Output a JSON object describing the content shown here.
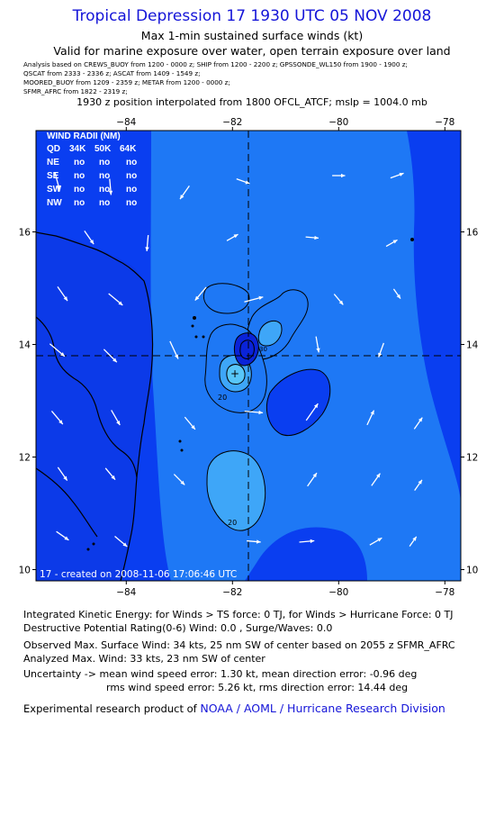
{
  "header": {
    "title": "Tropical Depression 17 1930 UTC 05 NOV 2008",
    "subtitle1": "Max 1-min sustained surface winds (kt)",
    "subtitle2": "Valid for marine exposure over water, open terrain exposure over land",
    "obs_lines": [
      "Analysis based on   CREWS_BUOY from 1200 - 0000 z;   SHIP from 1200 - 2200 z;   GPSSONDE_WL150 from 1900 - 1900 z;",
      "QSCAT from  2333 - 2336 z;   ASCAT from 1409 - 1549 z;",
      "MOORED_BUOY from 1209 - 2359 z;   METAR from 1200 - 0000 z;",
      "SFMR_AFRC from 1822 - 2319 z;"
    ],
    "position_line": "1930 z position interpolated from 1800 OFCL_ATCF; mslp = 1004.0 mb"
  },
  "wind_radii": {
    "title": "WIND RADII (NM)",
    "columns": [
      "QD",
      "34K",
      "50K",
      "64K"
    ],
    "rows": [
      [
        "NE",
        "no",
        "no",
        "no"
      ],
      [
        "SE",
        "no",
        "no",
        "no"
      ],
      [
        "SW",
        "no",
        "no",
        "no"
      ],
      [
        "NW",
        "no",
        "no",
        "no"
      ]
    ]
  },
  "map": {
    "created_label": "17 - created on 2008-11-06 17:06:46 UTC",
    "contour_labels": [
      "20",
      "20",
      "30"
    ],
    "colors": {
      "band_lt20": "#0a3ef0",
      "band_20_30": "#1e78f5",
      "band_30_40": "#3ea6f8",
      "band_ge40": "#58c6f8",
      "deep": "#0a23d8",
      "land": "#0c3ae8",
      "vectors": "#ffffff"
    }
  },
  "chart_data": {
    "type": "contour-map",
    "title": "Tropical Depression 17 1930 UTC 05 NOV 2008",
    "xlim": [
      -85.7,
      -77.7
    ],
    "ylim": [
      9.8,
      17.8
    ],
    "x_ticks": [
      -84,
      -82,
      -80,
      -78
    ],
    "x_tick_labels": [
      "−84",
      "−82",
      "−80",
      "−78"
    ],
    "y_ticks": [
      10,
      12,
      14,
      16
    ],
    "y_tick_labels": [
      "10",
      "12",
      "14",
      "16"
    ],
    "center": {
      "lon": -81.7,
      "lat": 13.8
    },
    "contour_levels_kt": [
      20,
      30
    ],
    "wind_vectors": [
      {
        "lon": -85.3,
        "lat": 16.9,
        "dir": 165,
        "speed": 16
      },
      {
        "lon": -84.3,
        "lat": 16.8,
        "dir": 175,
        "speed": 15
      },
      {
        "lon": -82.9,
        "lat": 16.7,
        "dir": 215,
        "speed": 15
      },
      {
        "lon": -81.8,
        "lat": 16.9,
        "dir": 110,
        "speed": 13
      },
      {
        "lon": -80.0,
        "lat": 17.0,
        "dir": 90,
        "speed": 12
      },
      {
        "lon": -78.9,
        "lat": 17.0,
        "dir": 70,
        "speed": 13
      },
      {
        "lon": -84.7,
        "lat": 15.9,
        "dir": 145,
        "speed": 15
      },
      {
        "lon": -83.6,
        "lat": 15.8,
        "dir": 185,
        "speed": 15
      },
      {
        "lon": -82.0,
        "lat": 15.9,
        "dir": 60,
        "speed": 12
      },
      {
        "lon": -80.5,
        "lat": 15.9,
        "dir": 95,
        "speed": 12
      },
      {
        "lon": -79.0,
        "lat": 15.8,
        "dir": 60,
        "speed": 12
      },
      {
        "lon": -85.2,
        "lat": 14.9,
        "dir": 145,
        "speed": 16
      },
      {
        "lon": -84.2,
        "lat": 14.8,
        "dir": 130,
        "speed": 17
      },
      {
        "lon": -82.6,
        "lat": 14.9,
        "dir": 220,
        "speed": 16
      },
      {
        "lon": -81.6,
        "lat": 14.8,
        "dir": 75,
        "speed": 18
      },
      {
        "lon": -80.0,
        "lat": 14.8,
        "dir": 140,
        "speed": 13
      },
      {
        "lon": -78.9,
        "lat": 14.9,
        "dir": 145,
        "speed": 11
      },
      {
        "lon": -85.3,
        "lat": 13.9,
        "dir": 130,
        "speed": 18
      },
      {
        "lon": -84.3,
        "lat": 13.8,
        "dir": 135,
        "speed": 17
      },
      {
        "lon": -83.1,
        "lat": 13.9,
        "dir": 155,
        "speed": 18
      },
      {
        "lon": -80.4,
        "lat": 14.0,
        "dir": 170,
        "speed": 15
      },
      {
        "lon": -79.2,
        "lat": 13.9,
        "dir": 200,
        "speed": 14
      },
      {
        "lon": -85.3,
        "lat": 12.7,
        "dir": 140,
        "speed": 16
      },
      {
        "lon": -84.2,
        "lat": 12.7,
        "dir": 150,
        "speed": 16
      },
      {
        "lon": -82.8,
        "lat": 12.6,
        "dir": 140,
        "speed": 15
      },
      {
        "lon": -81.6,
        "lat": 12.8,
        "dir": 95,
        "speed": 17
      },
      {
        "lon": -80.5,
        "lat": 12.8,
        "dir": 35,
        "speed": 19
      },
      {
        "lon": -79.4,
        "lat": 12.7,
        "dir": 25,
        "speed": 15
      },
      {
        "lon": -78.5,
        "lat": 12.6,
        "dir": 35,
        "speed": 13
      },
      {
        "lon": -85.2,
        "lat": 11.7,
        "dir": 145,
        "speed": 15
      },
      {
        "lon": -84.3,
        "lat": 11.7,
        "dir": 140,
        "speed": 14
      },
      {
        "lon": -83.0,
        "lat": 11.6,
        "dir": 135,
        "speed": 14
      },
      {
        "lon": -80.5,
        "lat": 11.6,
        "dir": 35,
        "speed": 15
      },
      {
        "lon": -79.3,
        "lat": 11.6,
        "dir": 35,
        "speed": 14
      },
      {
        "lon": -78.5,
        "lat": 11.5,
        "dir": 35,
        "speed": 12
      },
      {
        "lon": -85.2,
        "lat": 10.6,
        "dir": 125,
        "speed": 14
      },
      {
        "lon": -84.1,
        "lat": 10.5,
        "dir": 130,
        "speed": 15
      },
      {
        "lon": -81.6,
        "lat": 10.5,
        "dir": 95,
        "speed": 13
      },
      {
        "lon": -80.6,
        "lat": 10.5,
        "dir": 85,
        "speed": 14
      },
      {
        "lon": -79.3,
        "lat": 10.5,
        "dir": 60,
        "speed": 13
      },
      {
        "lon": -78.6,
        "lat": 10.5,
        "dir": 35,
        "speed": 11
      }
    ]
  },
  "footer": {
    "ike": "Integrated Kinetic Energy:  for Winds > TS force: 0 TJ,  for Winds > Hurricane Force: 0 TJ",
    "dpr": "Destructive Potential Rating(0-6)   Wind: 0.0 , Surge/Waves: 0.0",
    "obs_max": "Observed Max. Surface Wind: 34 kts, 25 nm SW of center based on 2055 z SFMR_AFRC",
    "analyzed_max": "Analyzed Max. Wind: 33 kts, 23 nm SW of center",
    "uncertainty1": "Uncertainty -> mean wind speed error: 1.30 kt,   mean direction error:  -0.96 deg",
    "uncertainty2": "rms wind speed error: 5.26 kt,   rms direction error: 14.44 deg",
    "product_prefix": "Experimental research product of ",
    "product_link": "NOAA / AOML / Hurricane Research Division"
  }
}
